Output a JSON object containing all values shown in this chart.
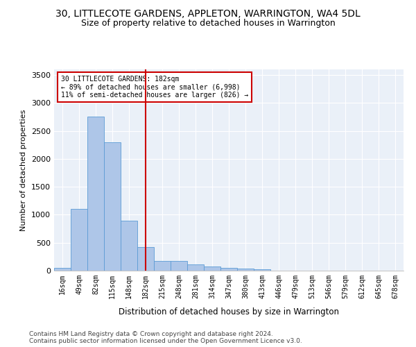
{
  "title1": "30, LITTLECOTE GARDENS, APPLETON, WARRINGTON, WA4 5DL",
  "title2": "Size of property relative to detached houses in Warrington",
  "xlabel": "Distribution of detached houses by size in Warrington",
  "ylabel": "Number of detached properties",
  "categories": [
    "16sqm",
    "49sqm",
    "82sqm",
    "115sqm",
    "148sqm",
    "182sqm",
    "215sqm",
    "248sqm",
    "281sqm",
    "314sqm",
    "347sqm",
    "380sqm",
    "413sqm",
    "446sqm",
    "479sqm",
    "513sqm",
    "546sqm",
    "579sqm",
    "612sqm",
    "645sqm",
    "678sqm"
  ],
  "values": [
    50,
    1100,
    2750,
    2300,
    900,
    420,
    175,
    175,
    110,
    70,
    50,
    40,
    30,
    0,
    0,
    0,
    0,
    0,
    0,
    0,
    0
  ],
  "bar_color": "#aec6e8",
  "bar_edge_color": "#5b9bd5",
  "vline_x": 5,
  "vline_color": "#cc0000",
  "annotation_text": "30 LITTLECOTE GARDENS: 182sqm\n← 89% of detached houses are smaller (6,998)\n11% of semi-detached houses are larger (826) →",
  "annotation_box_color": "#ffffff",
  "annotation_box_edge": "#cc0000",
  "ylim": [
    0,
    3600
  ],
  "yticks": [
    0,
    500,
    1000,
    1500,
    2000,
    2500,
    3000,
    3500
  ],
  "footer1": "Contains HM Land Registry data © Crown copyright and database right 2024.",
  "footer2": "Contains public sector information licensed under the Open Government Licence v3.0.",
  "bg_color": "#eaf0f8",
  "title1_fontsize": 10,
  "title2_fontsize": 9,
  "xlabel_fontsize": 8.5,
  "ylabel_fontsize": 8
}
